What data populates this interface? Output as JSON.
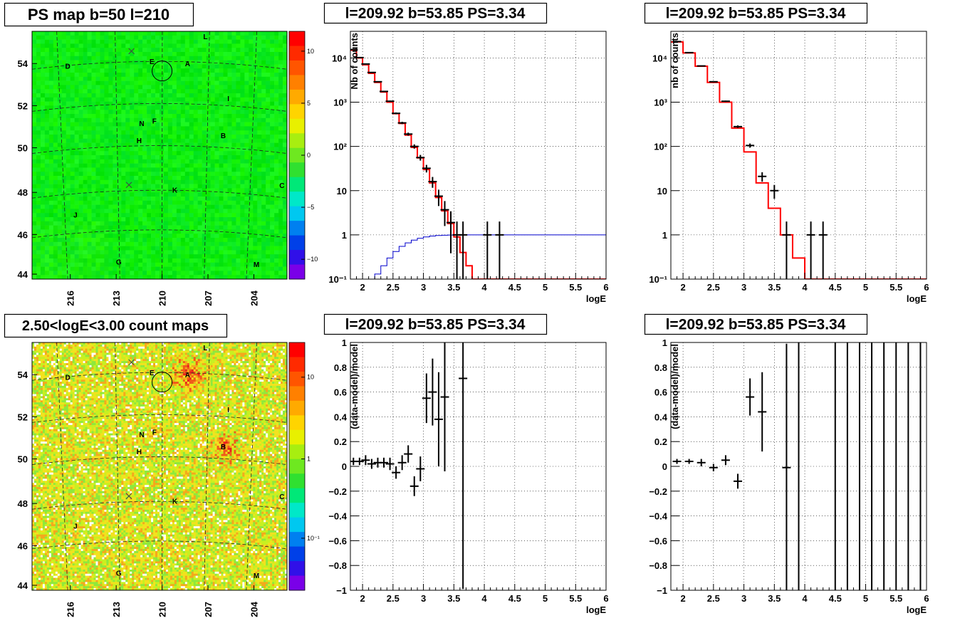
{
  "panels": [
    {
      "id": "map-ps",
      "title": "PS map b=50 l=210"
    },
    {
      "id": "spec-1",
      "title": "l=209.92 b=53.85 PS=3.34"
    },
    {
      "id": "spec-2",
      "title": "l=209.92 b=53.85 PS=3.34"
    },
    {
      "id": "map-counts",
      "title": "2.50<logE<3.00 count maps"
    },
    {
      "id": "resid-1",
      "title": "l=209.92 b=53.85 PS=3.34"
    },
    {
      "id": "resid-2",
      "title": "l=209.92 b=53.85 PS=3.34"
    }
  ],
  "colors": {
    "model": "#ff0000",
    "exposure": "#0000cc",
    "data": "#000000"
  },
  "chart_data": [
    {
      "type": "heatmap",
      "title": "PS map b=50 l=210",
      "x_ticks": [
        "216",
        "213",
        "210",
        "207",
        "204"
      ],
      "y_ticks": [
        "54",
        "52",
        "50",
        "48",
        "46",
        "44"
      ],
      "colorbar": {
        "ticks": [
          "10",
          "5",
          "0",
          "−5",
          "−10"
        ],
        "range": [
          -12,
          12
        ]
      },
      "sources": [
        "L",
        "A",
        "E",
        "D",
        "I",
        "N",
        "F",
        "B",
        "H",
        "K",
        "C",
        "J",
        "G",
        "M"
      ]
    },
    {
      "type": "line",
      "title": "l=209.92 b=53.85 PS=3.34",
      "xlabel": "logE",
      "ylabel": "Nb of counts",
      "xlim": [
        1.8,
        6
      ],
      "ylim": [
        0.1,
        40000
      ],
      "ylog": true,
      "x_ticks": [
        "2",
        "2.5",
        "3",
        "3.5",
        "4",
        "4.5",
        "5",
        "5.5",
        "6"
      ],
      "y_ticks": [
        "10⁴",
        "10³",
        "10²",
        "10",
        "1",
        "10⁻¹"
      ],
      "series": [
        {
          "style": "step",
          "color": "red",
          "x": [
            1.8,
            1.9,
            2.0,
            2.1,
            2.2,
            2.3,
            2.4,
            2.5,
            2.6,
            2.7,
            2.8,
            2.9,
            3.0,
            3.1,
            3.2,
            3.3,
            3.4,
            3.5,
            3.6,
            3.7,
            3.8,
            6.0
          ],
          "values": [
            15000,
            10000,
            7000,
            4500,
            2800,
            1700,
            1000,
            550,
            330,
            180,
            95,
            55,
            30,
            15,
            7,
            3.5,
            1.8,
            0.9,
            0.4,
            0.2,
            0.1,
            0.1
          ]
        },
        {
          "style": "step",
          "color": "blue",
          "x": [
            2.1,
            2.2,
            2.3,
            2.4,
            2.5,
            2.6,
            2.7,
            2.8,
            2.9,
            3.0,
            3.1,
            3.2,
            3.3,
            3.4,
            3.5,
            3.6,
            6.0
          ],
          "values": [
            0.1,
            0.13,
            0.2,
            0.3,
            0.42,
            0.55,
            0.66,
            0.76,
            0.84,
            0.9,
            0.94,
            0.97,
            0.98,
            0.99,
            1,
            1,
            1
          ]
        },
        {
          "style": "errorbar",
          "color": "black",
          "x": [
            1.85,
            1.95,
            2.05,
            2.15,
            2.25,
            2.35,
            2.45,
            2.55,
            2.65,
            2.75,
            2.85,
            2.95,
            3.05,
            3.15,
            3.25,
            3.35,
            3.45,
            3.55,
            3.65,
            4.05,
            4.25
          ],
          "values": [
            15500,
            10200,
            7300,
            4700,
            2900,
            1750,
            1050,
            560,
            340,
            190,
            100,
            56,
            32,
            16,
            7.5,
            3.7,
            1.9,
            1.0,
            1,
            1,
            1
          ]
        }
      ]
    },
    {
      "type": "line",
      "title": "l=209.92 b=53.85 PS=3.34",
      "xlabel": "logE",
      "ylabel": "nb of counts",
      "xlim": [
        1.8,
        6
      ],
      "ylim": [
        0.1,
        40000
      ],
      "ylog": true,
      "x_ticks": [
        "2",
        "2.5",
        "3",
        "3.5",
        "4",
        "4.5",
        "5",
        "5.5",
        "6"
      ],
      "y_ticks": [
        "10⁴",
        "10³",
        "10²",
        "10",
        "1",
        "10⁻¹"
      ],
      "series": [
        {
          "style": "step",
          "color": "red",
          "x": [
            1.8,
            2.0,
            2.2,
            2.4,
            2.6,
            2.8,
            3.0,
            3.2,
            3.4,
            3.6,
            3.8,
            4.0,
            4.2,
            6.0
          ],
          "values": [
            23000,
            13000,
            6500,
            2800,
            1000,
            260,
            75,
            15,
            4,
            1,
            0.3,
            0.1,
            0.1,
            0.1
          ]
        },
        {
          "style": "errorbar",
          "color": "black",
          "x": [
            1.9,
            2.1,
            2.3,
            2.5,
            2.7,
            2.9,
            3.1,
            3.3,
            3.5,
            3.7,
            4.1,
            4.3
          ],
          "values": [
            23500,
            13200,
            6600,
            2900,
            1050,
            280,
            105,
            21,
            10,
            1,
            1,
            1
          ]
        }
      ]
    },
    {
      "type": "heatmap",
      "title": "2.50<logE<3.00 count maps",
      "x_ticks": [
        "216",
        "213",
        "210",
        "207",
        "204"
      ],
      "y_ticks": [
        "54",
        "52",
        "50",
        "48",
        "46",
        "44"
      ],
      "colorbar": {
        "ticks": [
          "10",
          "1",
          "10⁻¹"
        ],
        "log": true
      },
      "sources": [
        "L",
        "A",
        "E",
        "D",
        "I",
        "N",
        "F",
        "B",
        "H",
        "K",
        "C",
        "J",
        "G",
        "M"
      ]
    },
    {
      "type": "scatter",
      "title": "l=209.92 b=53.85 PS=3.34",
      "xlabel": "logE",
      "ylabel": "(data-model)/model",
      "xlim": [
        1.8,
        6
      ],
      "ylim": [
        -1,
        1
      ],
      "x_ticks": [
        "2",
        "2.5",
        "3",
        "3.5",
        "4",
        "4.5",
        "5",
        "5.5",
        "6"
      ],
      "y_ticks": [
        "1",
        "0.8",
        "0.6",
        "0.4",
        "0.2",
        "0",
        "−0.2",
        "−0.4",
        "−0.6",
        "−0.8",
        "−1"
      ],
      "series": [
        {
          "style": "errorbar",
          "x": [
            1.85,
            1.95,
            2.05,
            2.15,
            2.25,
            2.35,
            2.45,
            2.55,
            2.65,
            2.75,
            2.85,
            2.95,
            3.05,
            3.15,
            3.25,
            3.35,
            3.65
          ],
          "values": [
            0.04,
            0.04,
            0.05,
            0.02,
            0.03,
            0.03,
            0.02,
            -0.05,
            0.03,
            0.1,
            -0.16,
            -0.02,
            0.55,
            0.6,
            0.38,
            0.56,
            0.71
          ],
          "errors": [
            0.03,
            0.03,
            0.04,
            0.04,
            0.04,
            0.04,
            0.05,
            0.05,
            0.06,
            0.07,
            0.08,
            0.1,
            0.2,
            0.27,
            0.38,
            0.6,
            1.7
          ]
        }
      ]
    },
    {
      "type": "scatter",
      "title": "l=209.92 b=53.85 PS=3.34",
      "xlabel": "logE",
      "ylabel": "(data-model)/model",
      "xlim": [
        1.8,
        6
      ],
      "ylim": [
        -1,
        1
      ],
      "x_ticks": [
        "2",
        "2.5",
        "3",
        "3.5",
        "4",
        "4.5",
        "5",
        "5.5",
        "6"
      ],
      "y_ticks": [
        "1",
        "0.8",
        "0.6",
        "0.4",
        "0.2",
        "0",
        "−0.2",
        "−0.4",
        "−0.6",
        "−0.8",
        "−1"
      ],
      "series": [
        {
          "style": "errorbar",
          "x": [
            1.9,
            2.1,
            2.3,
            2.5,
            2.7,
            2.9,
            3.1,
            3.3,
            3.7
          ],
          "values": [
            0.04,
            0.04,
            0.03,
            -0.01,
            0.05,
            -0.12,
            0.56,
            0.44,
            -0.01
          ],
          "errors": [
            0.02,
            0.02,
            0.03,
            0.03,
            0.04,
            0.06,
            0.15,
            0.32,
            1.0
          ]
        },
        {
          "style": "vline",
          "x": [
            3.9,
            4.5,
            4.7,
            4.9,
            5.1,
            5.3,
            5.5,
            5.7,
            5.9
          ]
        }
      ]
    }
  ]
}
